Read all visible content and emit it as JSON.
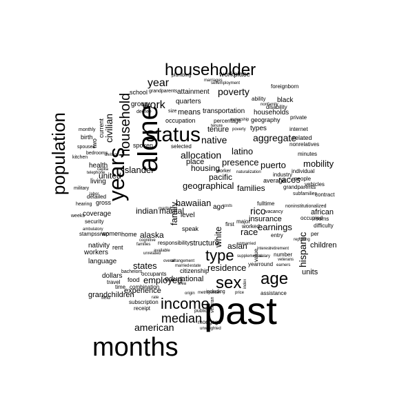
{
  "words": [
    {
      "text": "past"
    },
    {
      "text": "months"
    },
    {
      "text": "alone"
    },
    {
      "text": "years"
    },
    {
      "text": "status"
    },
    {
      "text": "population"
    },
    {
      "text": "householder"
    },
    {
      "text": "household"
    },
    {
      "text": "income"
    },
    {
      "text": "age"
    },
    {
      "text": "sex"
    },
    {
      "text": "type"
    },
    {
      "text": "median"
    },
    {
      "text": "year"
    },
    {
      "text": "work"
    },
    {
      "text": "poverty"
    },
    {
      "text": "aggregate"
    },
    {
      "text": "hispanic"
    },
    {
      "text": "allocation"
    },
    {
      "text": "native"
    },
    {
      "text": "latino"
    },
    {
      "text": "puerto"
    },
    {
      "text": "rico"
    },
    {
      "text": "races"
    },
    {
      "text": "race"
    },
    {
      "text": "earnings"
    },
    {
      "text": "american"
    },
    {
      "text": "geographical"
    },
    {
      "text": "hawaiian"
    },
    {
      "text": "islander"
    },
    {
      "text": "pacific"
    },
    {
      "text": "presence"
    },
    {
      "text": "civilian"
    },
    {
      "text": "mobility"
    },
    {
      "text": "residence"
    },
    {
      "text": "families"
    },
    {
      "text": "housing"
    },
    {
      "text": "states"
    },
    {
      "text": "employed"
    },
    {
      "text": "alaska"
    },
    {
      "text": "indian"
    },
    {
      "text": "marital"
    },
    {
      "text": "family"
    },
    {
      "text": "white"
    },
    {
      "text": "asian"
    },
    {
      "text": "united"
    },
    {
      "text": "children"
    },
    {
      "text": "units"
    },
    {
      "text": "grandchildren"
    },
    {
      "text": "experience"
    },
    {
      "text": "educational"
    },
    {
      "text": "structure"
    },
    {
      "text": "insurance"
    },
    {
      "text": "african"
    },
    {
      "text": "black"
    },
    {
      "text": "tenure"
    },
    {
      "text": "households"
    },
    {
      "text": "transportation"
    },
    {
      "text": "means"
    },
    {
      "text": "quarters"
    },
    {
      "text": "group"
    },
    {
      "text": "attainment"
    },
    {
      "text": "workplace"
    },
    {
      "text": "occupation"
    },
    {
      "text": "types"
    },
    {
      "text": "place"
    },
    {
      "text": "level"
    },
    {
      "text": "health"
    },
    {
      "text": "living"
    },
    {
      "text": "coverage"
    },
    {
      "text": "nativity"
    },
    {
      "text": "workers"
    },
    {
      "text": "language"
    },
    {
      "text": "dollars"
    },
    {
      "text": "food"
    },
    {
      "text": "school"
    },
    {
      "text": "birth"
    },
    {
      "text": "current"
    },
    {
      "text": "two"
    },
    {
      "text": "geography"
    },
    {
      "text": "related"
    },
    {
      "text": "rent"
    },
    {
      "text": "women"
    },
    {
      "text": "home"
    },
    {
      "text": "gross"
    },
    {
      "text": "spoken"
    },
    {
      "text": "mortgage"
    },
    {
      "text": "citizenship"
    },
    {
      "text": "responsibility"
    },
    {
      "text": "ago"
    },
    {
      "text": "speak"
    },
    {
      "text": "value"
    },
    {
      "text": "number"
    },
    {
      "text": "average"
    },
    {
      "text": "entry"
    },
    {
      "text": "ability"
    },
    {
      "text": "disability"
    },
    {
      "text": "foreignborn"
    },
    {
      "text": "occupied"
    },
    {
      "text": "vehicles"
    },
    {
      "text": "people"
    },
    {
      "text": "per"
    },
    {
      "text": "rooms"
    },
    {
      "text": "difficulty"
    },
    {
      "text": "contract"
    },
    {
      "text": "minutes"
    },
    {
      "text": "internet"
    },
    {
      "text": "private"
    },
    {
      "text": "nonrelatives"
    },
    {
      "text": "grandparents"
    },
    {
      "text": "individual"
    },
    {
      "text": "industry"
    },
    {
      "text": "assistance"
    },
    {
      "text": "yearround"
    },
    {
      "text": "fulltime"
    },
    {
      "text": "worked"
    },
    {
      "text": "first"
    },
    {
      "text": "major"
    },
    {
      "text": "occupants"
    },
    {
      "text": "combination"
    },
    {
      "text": "subscription"
    },
    {
      "text": "receipt"
    },
    {
      "text": "travel"
    },
    {
      "text": "time"
    },
    {
      "text": "field"
    },
    {
      "text": "bachelors"
    },
    {
      "text": "security"
    },
    {
      "text": "detailed"
    },
    {
      "text": "stampssnap"
    },
    {
      "text": "selected"
    },
    {
      "text": "percentage"
    },
    {
      "text": "plumbing"
    },
    {
      "text": "grandparents"
    },
    {
      "text": "monthly"
    },
    {
      "text": "spouses"
    },
    {
      "text": "kitchen"
    },
    {
      "text": "bedrooms"
    },
    {
      "text": "military"
    },
    {
      "text": "hearing"
    },
    {
      "text": "weeks"
    },
    {
      "text": "ambulatory"
    },
    {
      "text": "arrangement"
    },
    {
      "text": "metropolitan"
    },
    {
      "text": "including"
    },
    {
      "text": "public"
    },
    {
      "text": "veteran"
    },
    {
      "text": "unweighted"
    },
    {
      "text": "price"
    },
    {
      "text": "index"
    },
    {
      "text": "selfemployment"
    },
    {
      "text": "marriages"
    },
    {
      "text": "nonfamily"
    },
    {
      "text": "degree"
    },
    {
      "text": "size"
    },
    {
      "text": "worker"
    },
    {
      "text": "naturalization"
    },
    {
      "text": "ownership"
    },
    {
      "text": "poverty"
    },
    {
      "text": "costs"
    },
    {
      "text": "vacancy"
    },
    {
      "text": "noninstitutionalized"
    },
    {
      "text": "subfamilies"
    },
    {
      "text": "reporting"
    },
    {
      "text": "telephone"
    },
    {
      "text": "labor"
    },
    {
      "text": "capita"
    },
    {
      "text": "division"
    },
    {
      "text": "tenure"
    },
    {
      "text": "unmarried"
    },
    {
      "text": "earners"
    },
    {
      "text": "retirement"
    },
    {
      "text": "interest"
    },
    {
      "text": "veterans"
    },
    {
      "text": "supplemental"
    },
    {
      "text": "salary"
    },
    {
      "text": "marital"
    },
    {
      "text": "married"
    },
    {
      "text": "estate"
    },
    {
      "text": "overall"
    },
    {
      "text": "cognitive"
    },
    {
      "text": "unrelated"
    },
    {
      "text": "available"
    },
    {
      "text": "families"
    },
    {
      "text": "origin"
    },
    {
      "text": "area"
    },
    {
      "text": "rate"
    }
  ]
}
